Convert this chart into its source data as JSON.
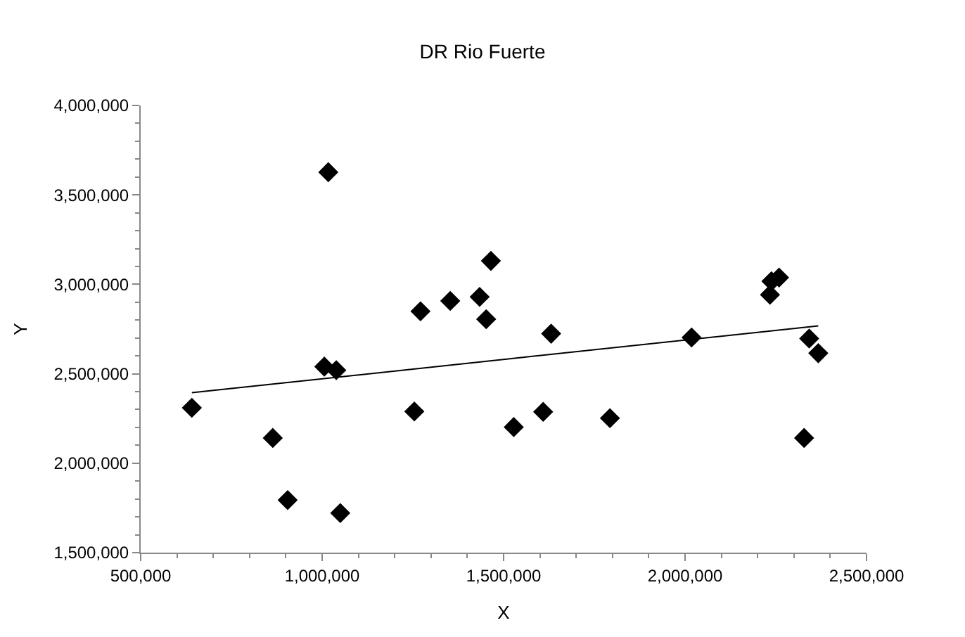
{
  "chart_data": {
    "type": "scatter",
    "title": "DR Rio Fuerte",
    "xlabel": "X",
    "ylabel": "Y",
    "xlim": [
      500000,
      2500000
    ],
    "xticks": [
      {
        "value": 500000,
        "label": "500,000"
      },
      {
        "value": 1000000,
        "label": "1,000,000"
      },
      {
        "value": 1500000,
        "label": "1,500,000"
      },
      {
        "value": 2000000,
        "label": "2,000,000"
      },
      {
        "value": 2500000,
        "label": "2,500,000"
      }
    ],
    "ylim": [
      1500000,
      4000000
    ],
    "yticks": [
      {
        "value": 1500000,
        "label": "1,500,000"
      },
      {
        "value": 2000000,
        "label": "2,000,000"
      },
      {
        "value": 2500000,
        "label": "2,500,000"
      },
      {
        "value": 3000000,
        "label": "3,000,000"
      },
      {
        "value": 3500000,
        "label": "3,500,000"
      },
      {
        "value": 4000000,
        "label": "4,000,000"
      }
    ],
    "series": [
      {
        "marker": "diamond",
        "color": "#000000",
        "x": [
          641000,
          864000,
          905000,
          1017000,
          1006000,
          1039000,
          1050000,
          1254000,
          1271000,
          1353000,
          1434000,
          1452000,
          1465000,
          1528000,
          1609000,
          1631000,
          1793000,
          2018000,
          2234000,
          2238000,
          2259000,
          2328000,
          2342000,
          2367000
        ],
        "values": [
          2310000,
          2141000,
          1794000,
          3627000,
          2540000,
          2520000,
          1721000,
          2289000,
          2849000,
          2907000,
          2930000,
          2805000,
          3131000,
          2202000,
          2287000,
          2724000,
          2252000,
          2703000,
          2942000,
          3017000,
          3038000,
          2141000,
          2697000,
          2615000
        ]
      },
      {
        "type": "line",
        "color": "#000000",
        "line_style": "solid",
        "x": [
          641000,
          2367000
        ],
        "values": [
          2394000,
          2768000
        ]
      }
    ]
  }
}
